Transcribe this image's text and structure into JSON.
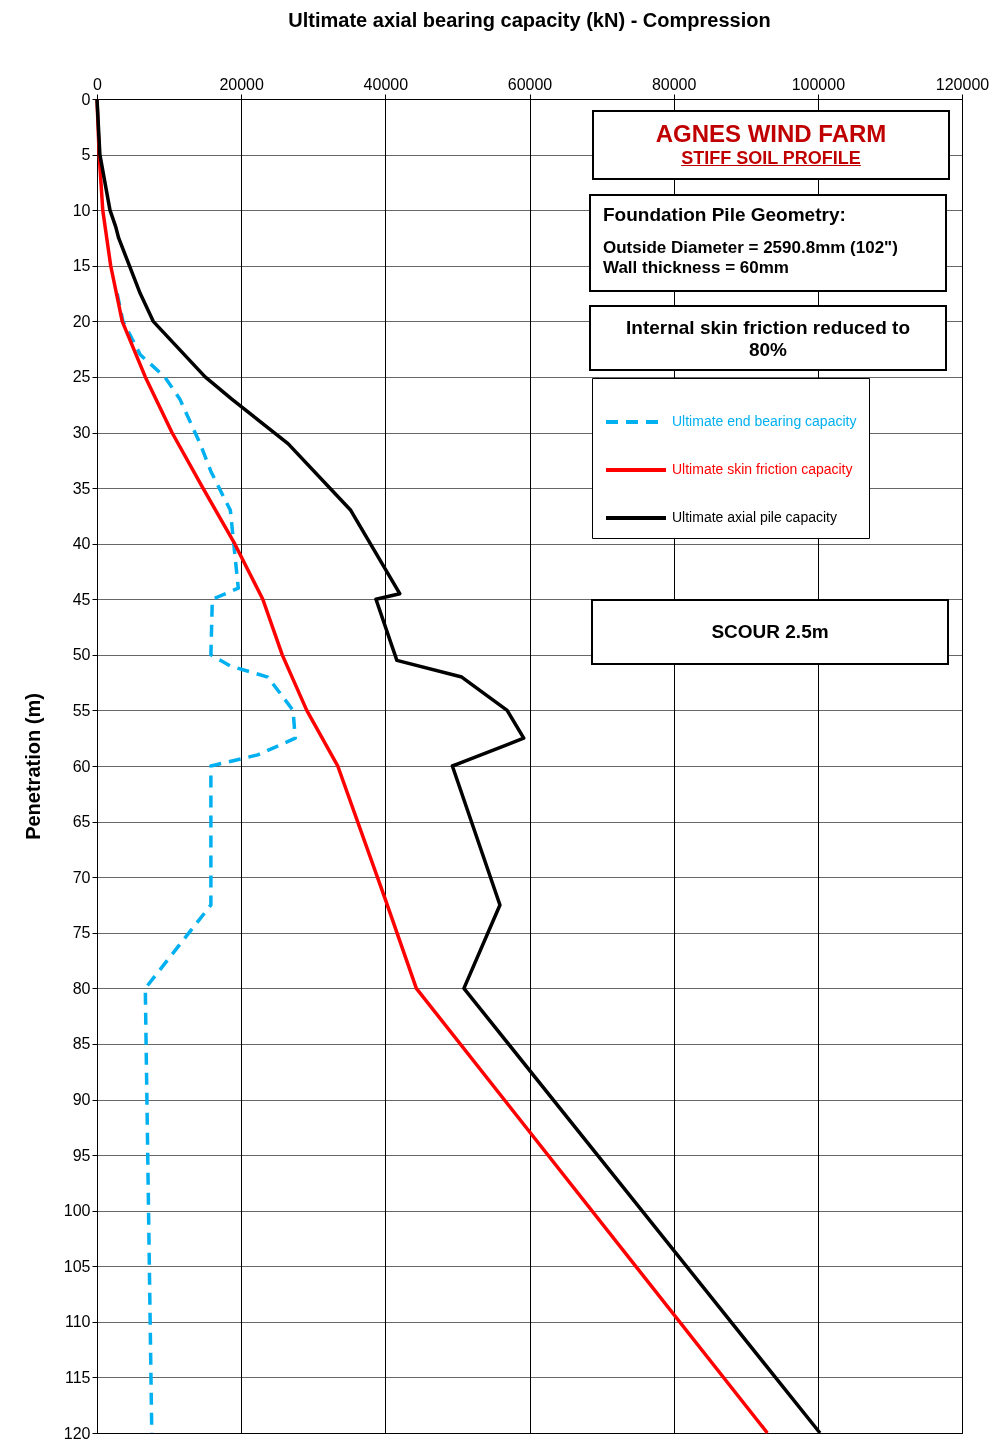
{
  "chart_data": {
    "type": "line",
    "title": "Ultimate axial bearing capacity  (kN) - Compression",
    "ylabel": "Penetration (m)",
    "xlim": [
      0,
      120000
    ],
    "xticks": [
      0,
      20000,
      40000,
      60000,
      80000,
      100000,
      120000
    ],
    "ylim": [
      120,
      0
    ],
    "yticks": [
      0,
      5,
      10,
      15,
      20,
      25,
      30,
      35,
      40,
      45,
      50,
      55,
      60,
      65,
      70,
      75,
      80,
      85,
      90,
      95,
      100,
      105,
      110,
      115,
      120
    ],
    "grid": true,
    "legend": "top right",
    "annotations": [
      "AGNES WIND FARM",
      "STIFF SOIL PROFILE",
      "Foundation Pile Geometry:",
      "Outside Diameter = 2590.8mm (102\")",
      "Wall thickness = 60mm",
      "Internal skin friction reduced to 80%",
      "SCOUR 2.5m"
    ],
    "series": [
      {
        "name": "Ultimate end bearing capacity",
        "color": "#00b0f0",
        "line_style": "dashed",
        "x": [
          2800,
          3600,
          6000,
          9400,
          11500,
          14300,
          15800,
          18500,
          19600,
          16000,
          15800,
          18500,
          23700,
          27200,
          27500,
          22300,
          15800,
          15800,
          6700,
          7600
        ],
        "values": [
          17.5,
          20,
          23,
          25,
          27,
          31,
          33.5,
          37,
          44,
          45,
          50,
          51,
          52,
          55,
          57.5,
          59,
          60,
          72.5,
          80,
          120
        ]
      },
      {
        "name": "Ultimate skin friction capacity",
        "color": "#ff0000",
        "line_style": "solid",
        "x": [
          0,
          300,
          800,
          1900,
          3500,
          6700,
          10400,
          14700,
          19100,
          23000,
          25700,
          29100,
          33400,
          40000,
          44300,
          93000
        ],
        "values": [
          0,
          5,
          10,
          15,
          20,
          25,
          30,
          35,
          40,
          45,
          50,
          55,
          60,
          72,
          80,
          120
        ]
      },
      {
        "name": "Ultimate axial pile capacity",
        "color": "#000000",
        "line_style": "solid",
        "x": [
          0,
          400,
          1800,
          2600,
          3000,
          6000,
          7800,
          15000,
          18700,
          26500,
          35200,
          42000,
          38700,
          41600,
          50600,
          56900,
          59200,
          49300,
          55900,
          50900,
          100300
        ],
        "values": [
          0,
          5,
          10,
          11.5,
          12.5,
          17.5,
          20,
          25,
          27,
          31,
          37,
          44.5,
          45,
          50.5,
          52,
          55,
          57.5,
          60,
          72.5,
          80,
          120
        ]
      }
    ]
  }
}
